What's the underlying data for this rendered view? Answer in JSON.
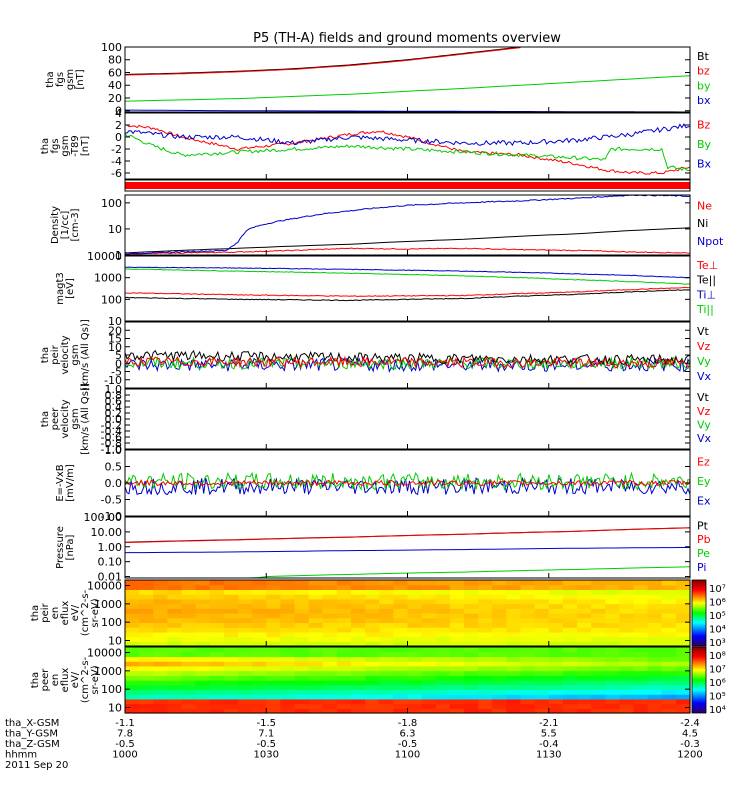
{
  "title": "P5 (TH-A) fields and ground moments overview",
  "colors": {
    "black": "#000000",
    "red": "#ff0000",
    "green": "#00cc00",
    "blue": "#0000cc",
    "bright_green": "#00ff00"
  },
  "chart_data": [
    {
      "type": "line",
      "panel": "fgs_gsm",
      "ylabel": [
        "tha",
        "fgs",
        "gsm",
        "[nT]"
      ],
      "ylim": [
        -2,
        100
      ],
      "yticks": [
        {
          "v": 100,
          "t": "100"
        },
        {
          "v": 80,
          "t": "80"
        },
        {
          "v": 60,
          "t": "60"
        },
        {
          "v": 40,
          "t": "40"
        },
        {
          "v": 20,
          "t": "20"
        },
        {
          "v": 0,
          "t": "0"
        }
      ],
      "legend": [
        {
          "name": "Bt",
          "color": "#000000"
        },
        {
          "name": "bz",
          "color": "#ff0000"
        },
        {
          "name": "by",
          "color": "#00cc00"
        },
        {
          "name": "bx",
          "color": "#0000cc"
        }
      ],
      "series": [
        {
          "name": "Bt",
          "color": "#000000",
          "x": [
            0,
            0.1,
            0.2,
            0.3,
            0.4,
            0.5,
            0.6,
            0.7
          ],
          "y": [
            57,
            59,
            62,
            66,
            72,
            80,
            90,
            100
          ]
        },
        {
          "name": "bz",
          "color": "#ff0000",
          "x": [
            0,
            0.1,
            0.2,
            0.3,
            0.4,
            0.5,
            0.6,
            0.7
          ],
          "y": [
            56,
            58,
            61,
            65,
            71,
            79,
            89,
            99
          ]
        },
        {
          "name": "by",
          "color": "#00cc00",
          "x": [
            0,
            0.2,
            0.4,
            0.6,
            0.8,
            1.0
          ],
          "y": [
            15,
            19,
            26,
            35,
            45,
            55
          ]
        },
        {
          "name": "bx",
          "color": "#0000cc",
          "x": [
            0,
            0.2,
            0.4,
            0.6,
            0.8,
            1.0
          ],
          "y": [
            1,
            0,
            -0.5,
            -1,
            -1.5,
            -2
          ]
        }
      ]
    },
    {
      "type": "line",
      "panel": "fgs_gsm_t89",
      "ylabel": [
        "tha",
        "fgs",
        "gsm",
        "-T89",
        "[nT]"
      ],
      "ylim": [
        -7,
        4
      ],
      "yticks": [
        {
          "v": 4,
          "t": "4"
        },
        {
          "v": 2,
          "t": "2"
        },
        {
          "v": 0,
          "t": "0"
        },
        {
          "v": -2,
          "t": "-2"
        },
        {
          "v": -4,
          "t": "-4"
        },
        {
          "v": -6,
          "t": "-6"
        }
      ],
      "legend": [
        {
          "name": "Bz",
          "color": "#ff0000"
        },
        {
          "name": "By",
          "color": "#00cc00"
        },
        {
          "name": "Bx",
          "color": "#0000cc"
        }
      ],
      "series": [
        {
          "name": "Bz",
          "color": "#ff0000",
          "noise": 0.25,
          "x": [
            0,
            0.05,
            0.1,
            0.2,
            0.3,
            0.4,
            0.45,
            0.5,
            0.6,
            0.7,
            0.8,
            0.85,
            0.9,
            0.95,
            1.0
          ],
          "y": [
            2,
            1.5,
            0,
            -2,
            -1,
            0.5,
            1,
            0,
            -2.5,
            -3,
            -4.5,
            -5.5,
            -6,
            -6,
            -5
          ]
        },
        {
          "name": "By",
          "color": "#00cc00",
          "noise": 0.3,
          "x": [
            0,
            0.05,
            0.1,
            0.2,
            0.3,
            0.4,
            0.5,
            0.6,
            0.7,
            0.8,
            0.85,
            0.86,
            0.95,
            0.96,
            1.0
          ],
          "y": [
            0.5,
            -1.5,
            -3,
            -2.5,
            -2,
            -1.5,
            -2,
            -2.5,
            -3,
            -3.5,
            -3.8,
            -2,
            -2,
            -5,
            -5.5
          ]
        },
        {
          "name": "Bx",
          "color": "#0000cc",
          "noise": 0.4,
          "x": [
            0,
            0.1,
            0.2,
            0.3,
            0.4,
            0.5,
            0.6,
            0.7,
            0.8,
            0.9,
            1.0
          ],
          "y": [
            1,
            0,
            0,
            -1,
            0,
            -0.5,
            -1,
            -1,
            -0.5,
            0.5,
            2
          ]
        }
      ]
    },
    {
      "type": "line",
      "panel": "density",
      "log": true,
      "ylabel": [
        "Density",
        "[1/cc]",
        "[cm-3]"
      ],
      "ylim": [
        1,
        200
      ],
      "yticks": [
        {
          "v": 100,
          "t": "100"
        },
        {
          "v": 10,
          "t": "10"
        },
        {
          "v": 1,
          "t": "1"
        }
      ],
      "legend": [
        {
          "name": "Ne",
          "color": "#ff0000"
        },
        {
          "name": "Ni",
          "color": "#000000"
        },
        {
          "name": "Npot",
          "color": "#0000cc"
        }
      ],
      "series": [
        {
          "name": "Ni",
          "color": "#000000",
          "noise": 0,
          "x": [
            0,
            0.2,
            0.4,
            0.6,
            0.8,
            1.0
          ],
          "y": [
            1.2,
            1.8,
            2.6,
            4,
            6.5,
            11
          ]
        },
        {
          "name": "Ne",
          "color": "#ff0000",
          "noise": 0.04,
          "x": [
            0,
            0.2,
            0.3,
            0.4,
            0.5,
            0.6,
            0.7,
            0.8,
            0.9,
            1.0
          ],
          "y": [
            1.1,
            1.3,
            1.5,
            1.8,
            1.7,
            1.8,
            1.6,
            1.5,
            1.3,
            1.2
          ]
        },
        {
          "name": "Npot",
          "color": "#0000cc",
          "noise": 0.05,
          "x": [
            0,
            0.18,
            0.2,
            0.22,
            0.3,
            0.4,
            0.5,
            0.6,
            0.7,
            0.8,
            0.9,
            0.91,
            1.0
          ],
          "y": [
            1.1,
            1.5,
            3,
            10,
            25,
            50,
            80,
            100,
            120,
            150,
            200,
            200,
            180
          ]
        }
      ]
    },
    {
      "type": "line",
      "panel": "magt3",
      "log": true,
      "ylabel": [
        "magt3",
        "[eV]"
      ],
      "ylim": [
        10,
        10000
      ],
      "yticks": [
        {
          "v": 10000,
          "t": "10000"
        },
        {
          "v": 1000,
          "t": "1000"
        },
        {
          "v": 100,
          "t": "100"
        },
        {
          "v": 10,
          "t": "10"
        }
      ],
      "legend": [
        {
          "name": "Te⊥",
          "color": "#ff0000"
        },
        {
          "name": "Te||",
          "color": "#000000"
        },
        {
          "name": "Ti⊥",
          "color": "#0000cc"
        },
        {
          "name": "Ti||",
          "color": "#00cc00"
        }
      ],
      "series": [
        {
          "name": "Ti⊥",
          "color": "#0000cc",
          "noise": 0.03,
          "x": [
            0,
            0.2,
            0.4,
            0.6,
            0.8,
            1.0
          ],
          "y": [
            3000,
            2800,
            2400,
            2000,
            1500,
            1000
          ]
        },
        {
          "name": "Ti||",
          "color": "#00cc00",
          "noise": 0.03,
          "x": [
            0,
            0.2,
            0.4,
            0.6,
            0.8,
            1.0
          ],
          "y": [
            2500,
            2000,
            1600,
            1200,
            800,
            500
          ]
        },
        {
          "name": "Te⊥",
          "color": "#ff0000",
          "noise": 0.04,
          "x": [
            0,
            0.2,
            0.4,
            0.6,
            0.8,
            1.0
          ],
          "y": [
            200,
            160,
            140,
            150,
            220,
            350
          ]
        },
        {
          "name": "Te||",
          "color": "#000000",
          "noise": 0.04,
          "x": [
            0,
            0.2,
            0.4,
            0.6,
            0.8,
            1.0
          ],
          "y": [
            120,
            100,
            90,
            110,
            170,
            280
          ]
        }
      ]
    },
    {
      "type": "line",
      "panel": "peir_velocity",
      "ylabel": [
        "tha",
        "peir",
        "velocity",
        "gsm",
        "[km/s (All Qs)]"
      ],
      "ylim": [
        -15,
        25
      ],
      "yticks": [
        {
          "v": 20,
          "t": "20"
        },
        {
          "v": 15,
          "t": "15"
        },
        {
          "v": 10,
          "t": "10"
        },
        {
          "v": 5,
          "t": "5"
        },
        {
          "v": 0,
          "t": "0"
        },
        {
          "v": -5,
          "t": "-5"
        },
        {
          "v": -10,
          "t": "-10"
        }
      ],
      "legend": [
        {
          "name": "Vt",
          "color": "#000000"
        },
        {
          "name": "Vz",
          "color": "#ff0000"
        },
        {
          "name": "Vy",
          "color": "#00cc00"
        },
        {
          "name": "Vx",
          "color": "#0000cc"
        }
      ],
      "series": [
        {
          "name": "Vx",
          "color": "#0000cc",
          "noise": 4,
          "x": [
            0,
            1
          ],
          "y": [
            -1,
            -1
          ]
        },
        {
          "name": "Vy",
          "color": "#00cc00",
          "noise": 3.5,
          "x": [
            0,
            1
          ],
          "y": [
            0,
            0
          ]
        },
        {
          "name": "Vt",
          "color": "#000000",
          "noise": 3,
          "x": [
            0,
            0.5,
            1
          ],
          "y": [
            5,
            3,
            2
          ]
        },
        {
          "name": "Vz",
          "color": "#ff0000",
          "noise": 3,
          "x": [
            0,
            1
          ],
          "y": [
            1,
            0
          ]
        }
      ]
    },
    {
      "type": "line",
      "panel": "peer_velocity",
      "ylabel": [
        "tha",
        "peer",
        "velocity",
        "gsm",
        "[km/s (All Qs)]"
      ],
      "ylim": [
        -1,
        1
      ],
      "yticks": [
        {
          "v": 1,
          "t": "1.0"
        },
        {
          "v": 0.8,
          "t": "0.8"
        },
        {
          "v": 0.6,
          "t": "0.6"
        },
        {
          "v": 0.4,
          "t": "0.4"
        },
        {
          "v": 0.2,
          "t": "0.2"
        },
        {
          "v": 0,
          "t": "0.0"
        },
        {
          "v": -0.2,
          "t": "-0.2"
        },
        {
          "v": -0.4,
          "t": "-0.4"
        },
        {
          "v": -0.6,
          "t": "-0.6"
        },
        {
          "v": -0.8,
          "t": "-0.8"
        },
        {
          "v": -1,
          "t": "-1.0"
        }
      ],
      "legend": [
        {
          "name": "Vt",
          "color": "#000000"
        },
        {
          "name": "Vz",
          "color": "#ff0000"
        },
        {
          "name": "Vy",
          "color": "#00cc00"
        },
        {
          "name": "Vx",
          "color": "#0000cc"
        }
      ],
      "series": []
    },
    {
      "type": "line",
      "panel": "efield",
      "ylabel": [
        "E=-VxB",
        "[mV/m]"
      ],
      "ylim": [
        -1,
        1
      ],
      "yticks": [
        {
          "v": 1,
          "t": "1.0"
        },
        {
          "v": 0.5,
          "t": "0.5"
        },
        {
          "v": 0,
          "t": "0.0"
        },
        {
          "v": -0.5,
          "t": "-0.5"
        },
        {
          "v": -1,
          "t": "-1.0"
        }
      ],
      "legend": [
        {
          "name": "Ez",
          "color": "#ff0000"
        },
        {
          "name": "Ey",
          "color": "#00cc00"
        },
        {
          "name": "Ex",
          "color": "#0000cc"
        }
      ],
      "series": [
        {
          "name": "Ex",
          "color": "#0000cc",
          "noise": 0.25,
          "x": [
            0,
            1
          ],
          "y": [
            -0.1,
            -0.1
          ]
        },
        {
          "name": "Ey",
          "color": "#00cc00",
          "noise": 0.25,
          "x": [
            0,
            1
          ],
          "y": [
            0.05,
            0.05
          ]
        },
        {
          "name": "Ez",
          "color": "#ff0000",
          "noise": 0.08,
          "x": [
            0,
            1
          ],
          "y": [
            0,
            0
          ]
        }
      ]
    },
    {
      "type": "line",
      "panel": "pressure",
      "log": true,
      "ylabel": [
        "Pressure",
        "[nPa]"
      ],
      "ylim": [
        0.008,
        100
      ],
      "yticks": [
        {
          "v": 100,
          "t": "100.00"
        },
        {
          "v": 10,
          "t": "10.00"
        },
        {
          "v": 1,
          "t": "1.00"
        },
        {
          "v": 0.1,
          "t": "0.10"
        },
        {
          "v": 0.01,
          "t": "0.01"
        }
      ],
      "legend": [
        {
          "name": "Pt",
          "color": "#000000"
        },
        {
          "name": "Pb",
          "color": "#ff0000"
        },
        {
          "name": "Pe",
          "color": "#00cc00"
        },
        {
          "name": "Pi",
          "color": "#0000cc"
        }
      ],
      "series": [
        {
          "name": "Pi",
          "color": "#0000cc",
          "noise": 0,
          "x": [
            0,
            0.2,
            0.4,
            0.6,
            0.8,
            1.0
          ],
          "y": [
            0.4,
            0.45,
            0.55,
            0.65,
            0.8,
            0.9
          ]
        },
        {
          "name": "Pe",
          "color": "#00cc00",
          "noise": 0,
          "x": [
            0,
            0.2,
            0.25,
            0.4,
            0.6,
            0.8,
            1.0
          ],
          "y": [
            0.005,
            0.005,
            0.01,
            0.014,
            0.02,
            0.03,
            0.045
          ]
        },
        {
          "name": "Pt",
          "color": "#000000",
          "noise": 0,
          "x": [
            0,
            0.2,
            0.4,
            0.6,
            0.8,
            1.0
          ],
          "y": [
            2,
            3,
            4.5,
            7,
            11,
            19
          ]
        },
        {
          "name": "Pb",
          "color": "#ff0000",
          "noise": 0,
          "x": [
            0,
            0.2,
            0.4,
            0.6,
            0.8,
            1.0
          ],
          "y": [
            1.9,
            2.9,
            4.4,
            6.9,
            10.8,
            18.5
          ]
        }
      ]
    },
    {
      "type": "heatmap",
      "panel": "peir_eflux",
      "log": true,
      "ylabel": [
        "tha",
        "peir",
        "en",
        "eflux",
        "eV/",
        "(cm^2-s-",
        "sr-eV)"
      ],
      "ylim": [
        5,
        20000
      ],
      "yticks": [
        {
          "v": 10000,
          "t": "10000"
        },
        {
          "v": 1000,
          "t": "1000"
        },
        {
          "v": 100,
          "t": "100"
        },
        {
          "v": 10,
          "t": "10"
        }
      ],
      "colorbar": {
        "ticks": [
          "10⁷",
          "10⁶",
          "10⁵",
          "10⁴",
          "10³"
        ]
      }
    },
    {
      "type": "heatmap",
      "panel": "peer_eflux",
      "log": true,
      "ylabel": [
        "tha",
        "peer",
        "en",
        "eflux",
        "eV/",
        "(cm^2-s-",
        "sr-eV)"
      ],
      "ylim": [
        5,
        20000
      ],
      "yticks": [
        {
          "v": 10000,
          "t": "10000"
        },
        {
          "v": 1000,
          "t": "1000"
        },
        {
          "v": 100,
          "t": "100"
        },
        {
          "v": 10,
          "t": "10"
        }
      ],
      "colorbar": {
        "ticks": [
          "10⁸",
          "10⁷",
          "10⁶",
          "10⁵",
          "10⁴"
        ]
      }
    }
  ],
  "x_axis": {
    "labels": [
      "tha_X-GSM",
      "tha_Y-GSM",
      "tha_Z-GSM",
      "hhmm",
      "2011 Sep 20"
    ],
    "ticks": [
      {
        "t": 0,
        "values": [
          "-1.1",
          "7.8",
          "-0.5",
          "1000"
        ]
      },
      {
        "t": 0.25,
        "values": [
          "-1.5",
          "7.1",
          "-0.5",
          "1030"
        ]
      },
      {
        "t": 0.5,
        "values": [
          "-1.8",
          "6.3",
          "-0.5",
          "1100"
        ]
      },
      {
        "t": 0.75,
        "values": [
          "-2.1",
          "5.5",
          "-0.4",
          "1130"
        ]
      },
      {
        "t": 1,
        "values": [
          "-2.4",
          "4.5",
          "-0.3",
          "1200"
        ]
      }
    ]
  }
}
